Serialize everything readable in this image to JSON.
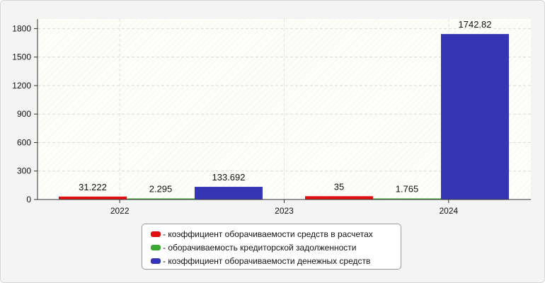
{
  "chart_data": {
    "type": "bar",
    "categories": [
      "2022",
      "2023",
      "2024"
    ],
    "ylim": [
      0,
      1900
    ],
    "yticks": [
      0,
      300,
      600,
      900,
      1200,
      1500,
      1800
    ],
    "grid": true,
    "legend_position": "bottom-center",
    "series": [
      {
        "name": "- коэффициент оборачиваемости средств в расчетах",
        "color": "#e01010",
        "values": [
          31.222,
          null,
          35
        ],
        "labels": [
          "31.222",
          "",
          "35"
        ]
      },
      {
        "name": "- оборачиваемость кредиторской задолженности",
        "color": "#3aaa35",
        "values": [
          2.295,
          null,
          1.765
        ],
        "labels": [
          "2.295",
          "",
          "1.765"
        ]
      },
      {
        "name": "- коэффициент оборачиваемости денежных средств",
        "color": "#3535b5",
        "values": [
          133.692,
          null,
          1742.82
        ],
        "labels": [
          "133.692",
          "",
          "1742.82"
        ]
      }
    ]
  }
}
